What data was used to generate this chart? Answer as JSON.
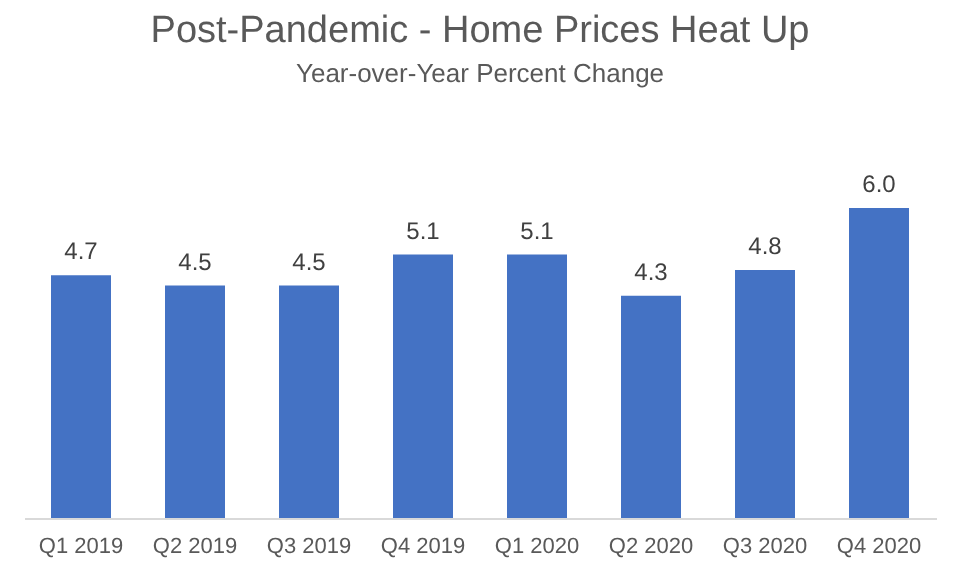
{
  "chart_data": {
    "type": "bar",
    "title": "Post-Pandemic - Home Prices Heat Up",
    "subtitle": "Year-over-Year Percent Change",
    "categories": [
      "Q1 2019",
      "Q2 2019",
      "Q3 2019",
      "Q4 2019",
      "Q1 2020",
      "Q2 2020",
      "Q3 2020",
      "Q4 2020"
    ],
    "values": [
      4.7,
      4.5,
      4.5,
      5.1,
      5.1,
      4.3,
      4.8,
      6.0
    ],
    "color": "#4472c4",
    "value_labels": [
      "4.7",
      "4.5",
      "4.5",
      "5.1",
      "5.1",
      "4.3",
      "4.8",
      "6.0"
    ]
  }
}
